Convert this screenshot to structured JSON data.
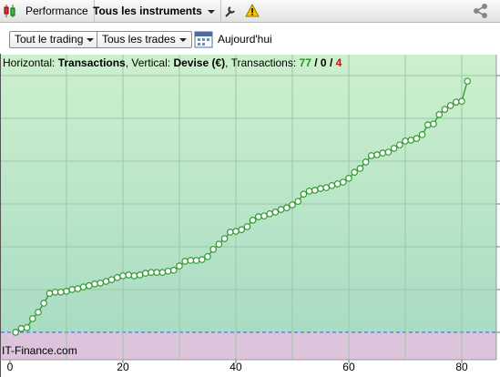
{
  "toolbar": {
    "tabs": [
      "Performance",
      "Tous les instruments"
    ]
  },
  "filters": {
    "trading": "Tout le trading",
    "trades": "Tous les trades",
    "period": "Aujourd'hui"
  },
  "chart_data": {
    "type": "line",
    "info": {
      "horizontal_label": "Horizontal:",
      "horizontal_value": "Transactions",
      "vertical_label": ", Vertical:",
      "vertical_value": "Devise (€)",
      "count_label": ", Transactions:",
      "wins": 77,
      "flat": 0,
      "losses": 4,
      "separator": "/"
    },
    "watermark": "IT-Finance.com",
    "x": [
      1,
      2,
      3,
      4,
      5,
      6,
      7,
      8,
      9,
      10,
      11,
      12,
      13,
      14,
      15,
      16,
      17,
      18,
      19,
      20,
      21,
      22,
      23,
      24,
      25,
      26,
      27,
      28,
      29,
      30,
      31,
      32,
      33,
      34,
      35,
      36,
      37,
      38,
      39,
      40,
      41,
      42,
      43,
      44,
      45,
      46,
      47,
      48,
      49,
      50,
      51,
      52,
      53,
      54,
      55,
      56,
      57,
      58,
      59,
      60,
      61,
      62,
      63,
      64,
      65,
      66,
      67,
      68,
      69,
      70,
      71,
      72,
      73,
      74,
      75,
      76,
      77,
      78,
      79,
      80,
      81
    ],
    "values": [
      0,
      0.09,
      0.11,
      0.32,
      0.47,
      0.68,
      0.91,
      0.94,
      0.94,
      0.96,
      1.0,
      1.02,
      1.06,
      1.09,
      1.13,
      1.15,
      1.19,
      1.23,
      1.28,
      1.32,
      1.34,
      1.32,
      1.34,
      1.38,
      1.4,
      1.4,
      1.4,
      1.43,
      1.45,
      1.55,
      1.66,
      1.68,
      1.68,
      1.7,
      1.77,
      1.94,
      2.06,
      2.19,
      2.34,
      2.36,
      2.4,
      2.47,
      2.62,
      2.7,
      2.72,
      2.77,
      2.81,
      2.87,
      2.91,
      2.98,
      3.06,
      3.23,
      3.3,
      3.32,
      3.36,
      3.38,
      3.43,
      3.47,
      3.51,
      3.6,
      3.74,
      3.83,
      3.98,
      4.13,
      4.15,
      4.19,
      4.21,
      4.3,
      4.38,
      4.47,
      4.49,
      4.53,
      4.62,
      4.85,
      4.87,
      5.09,
      5.21,
      5.3,
      5.38,
      5.4,
      5.87
    ],
    "color": "#2e9b2e",
    "xlim": [
      -1.77,
      86.13
    ],
    "ylim": [
      -0.64,
      6.49
    ],
    "xticks": [
      0,
      20,
      40,
      60,
      80
    ],
    "xgrid": [
      10,
      20,
      30,
      40,
      50,
      60,
      70,
      80
    ],
    "ygrid": [
      0,
      1,
      2,
      3,
      4,
      5,
      6
    ],
    "grid": true
  }
}
